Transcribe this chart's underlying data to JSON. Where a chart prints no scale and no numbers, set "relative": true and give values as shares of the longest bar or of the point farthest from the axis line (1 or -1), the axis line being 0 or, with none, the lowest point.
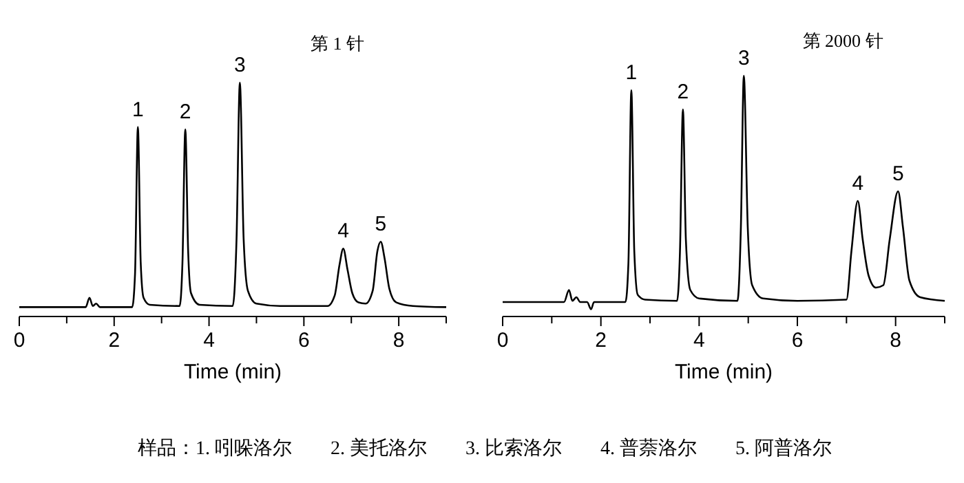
{
  "chart_data": [
    {
      "type": "line",
      "title": "第 1 针",
      "xlabel": "Time (min)",
      "relative": true,
      "tick_labels": "x",
      "grid": false,
      "marker": "none",
      "line_style": "solid",
      "xlim": [
        0,
        9
      ],
      "xticks": [
        0,
        {
          "value": 1,
          "label": null
        },
        2,
        {
          "value": 3,
          "label": null
        },
        4,
        {
          "value": 5,
          "label": null
        },
        6,
        {
          "value": 7,
          "label": null
        },
        8,
        {
          "value": 9,
          "label": null
        }
      ],
      "x": [
        0,
        1.4,
        1.48,
        1.55,
        1.62,
        1.7,
        2.38,
        2.44,
        2.5,
        2.56,
        2.62,
        2.75,
        3.38,
        3.44,
        3.5,
        3.56,
        3.62,
        3.8,
        4.5,
        4.58,
        4.65,
        4.73,
        4.82,
        5.0,
        5.5,
        6.5,
        6.65,
        6.75,
        6.83,
        6.92,
        7.02,
        7.15,
        7.3,
        7.45,
        7.55,
        7.62,
        7.7,
        7.8,
        7.95,
        8.3,
        9
      ],
      "series": [
        {
          "color": "#000000",
          "values": [
            0.04,
            0.04,
            0.08,
            0.045,
            0.055,
            0.04,
            0.04,
            0.18,
            0.81,
            0.23,
            0.08,
            0.05,
            0.045,
            0.23,
            0.8,
            0.28,
            0.1,
            0.05,
            0.045,
            0.33,
            1,
            0.33,
            0.11,
            0.055,
            0.045,
            0.045,
            0.09,
            0.22,
            0.29,
            0.2,
            0.1,
            0.06,
            0.055,
            0.11,
            0.28,
            0.32,
            0.25,
            0.12,
            0.06,
            0.045,
            0.04
          ]
        }
      ],
      "annotations": [
        {
          "text": "1",
          "x": 2.5,
          "y": 0.81
        },
        {
          "text": "2",
          "x": 3.5,
          "y": 0.8
        },
        {
          "text": "3",
          "x": 4.65,
          "y": 1
        },
        {
          "text": "4",
          "x": 6.83,
          "y": 0.29
        },
        {
          "text": "5",
          "x": 7.62,
          "y": 0.32
        }
      ]
    },
    {
      "type": "line",
      "title": "第 2000 针",
      "xlabel": "Time (min)",
      "relative": true,
      "tick_labels": "x",
      "grid": false,
      "marker": "none",
      "line_style": "solid",
      "xlim": [
        0,
        9
      ],
      "xticks": [
        0,
        {
          "value": 1,
          "label": null
        },
        2,
        {
          "value": 3,
          "label": null
        },
        4,
        {
          "value": 5,
          "label": null
        },
        6,
        {
          "value": 7,
          "label": null
        },
        8,
        {
          "value": 9,
          "label": null
        }
      ],
      "x": [
        0,
        1.25,
        1.35,
        1.42,
        1.5,
        1.58,
        1.72,
        1.8,
        1.86,
        2.5,
        2.56,
        2.62,
        2.68,
        2.75,
        2.9,
        3.55,
        3.61,
        3.67,
        3.73,
        3.82,
        4.0,
        4.78,
        4.85,
        4.91,
        4.99,
        5.08,
        5.3,
        6.0,
        7.0,
        7.1,
        7.23,
        7.33,
        7.45,
        7.6,
        7.75,
        7.88,
        8.05,
        8.15,
        8.28,
        8.5,
        9
      ],
      "series": [
        {
          "color": "#000000",
          "values": [
            0.06,
            0.06,
            0.11,
            0.065,
            0.08,
            0.06,
            0.06,
            0.03,
            0.06,
            0.06,
            0.22,
            0.94,
            0.27,
            0.09,
            0.07,
            0.065,
            0.27,
            0.86,
            0.32,
            0.11,
            0.075,
            0.065,
            0.37,
            1,
            0.37,
            0.13,
            0.075,
            0.065,
            0.07,
            0.27,
            0.48,
            0.32,
            0.17,
            0.12,
            0.13,
            0.32,
            0.52,
            0.37,
            0.15,
            0.08,
            0.065
          ]
        }
      ],
      "annotations": [
        {
          "text": "1",
          "x": 2.62,
          "y": 0.94
        },
        {
          "text": "2",
          "x": 3.67,
          "y": 0.86
        },
        {
          "text": "3",
          "x": 4.91,
          "y": 1
        },
        {
          "text": "4",
          "x": 7.23,
          "y": 0.48
        },
        {
          "text": "5",
          "x": 8.05,
          "y": 0.52
        },
        "样品：1. 吲哚洛尔        2. 美托洛尔        3. 比索洛尔        4. 普萘洛尔        5. 阿普洛尔"
      ]
    }
  ]
}
